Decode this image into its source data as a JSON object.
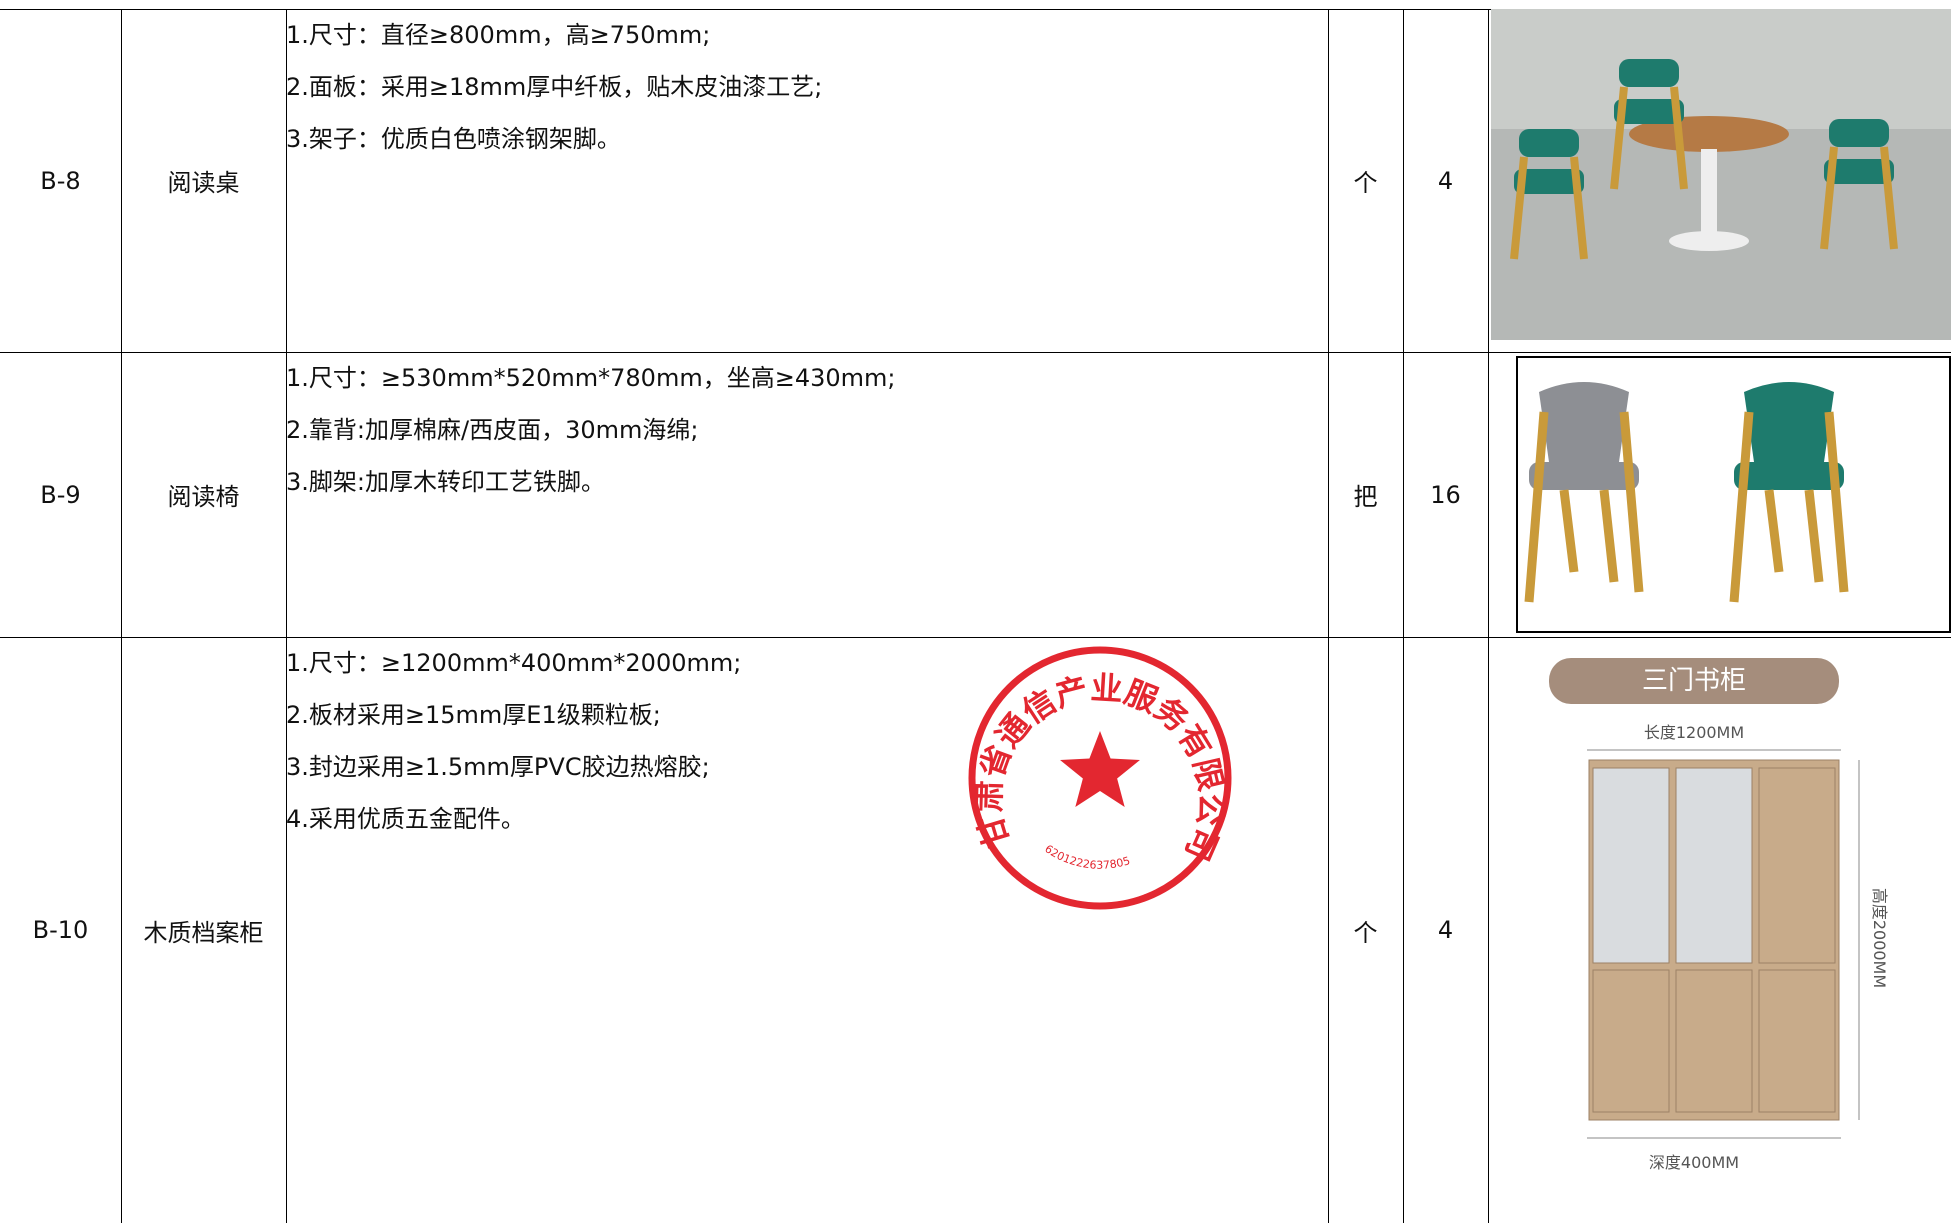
{
  "table": {
    "rows": [
      {
        "code": "B-8",
        "name": "阅读桌",
        "specs": [
          "1.尺寸：直径≥800mm，高≥750mm;",
          "2.面板：采用≥18mm厚中纤板，贴木皮油漆工艺;",
          "3.架子：优质白色喷涂钢架脚。"
        ],
        "unit": "个",
        "qty": "4"
      },
      {
        "code": "B-9",
        "name": "阅读椅",
        "specs": [
          "1.尺寸：≥530mm*520mm*780mm，坐高≥430mm;",
          "2.靠背:加厚棉麻/西皮面，30mm海绵;",
          "3.脚架:加厚木转印工艺铁脚。"
        ],
        "unit": "把",
        "qty": "16"
      },
      {
        "code": "B-10",
        "name": "木质档案柜",
        "specs": [
          "1.尺寸：≥1200mm*400mm*2000mm;",
          "2.板材采用≥15mm厚E1级颗粒板;",
          "3.封边采用≥1.5mm厚PVC胶边热熔胶;",
          "4.采用优质五金配件。"
        ],
        "unit": "个",
        "qty": "4"
      }
    ]
  },
  "cabinet_image": {
    "title": "三门书柜",
    "width": "长度1200MM",
    "height": "高度2000MM",
    "depth": "深度400MM"
  },
  "stamp": {
    "company": "甘肃省通信产业服务有限公司",
    "number": "6201222637805"
  }
}
